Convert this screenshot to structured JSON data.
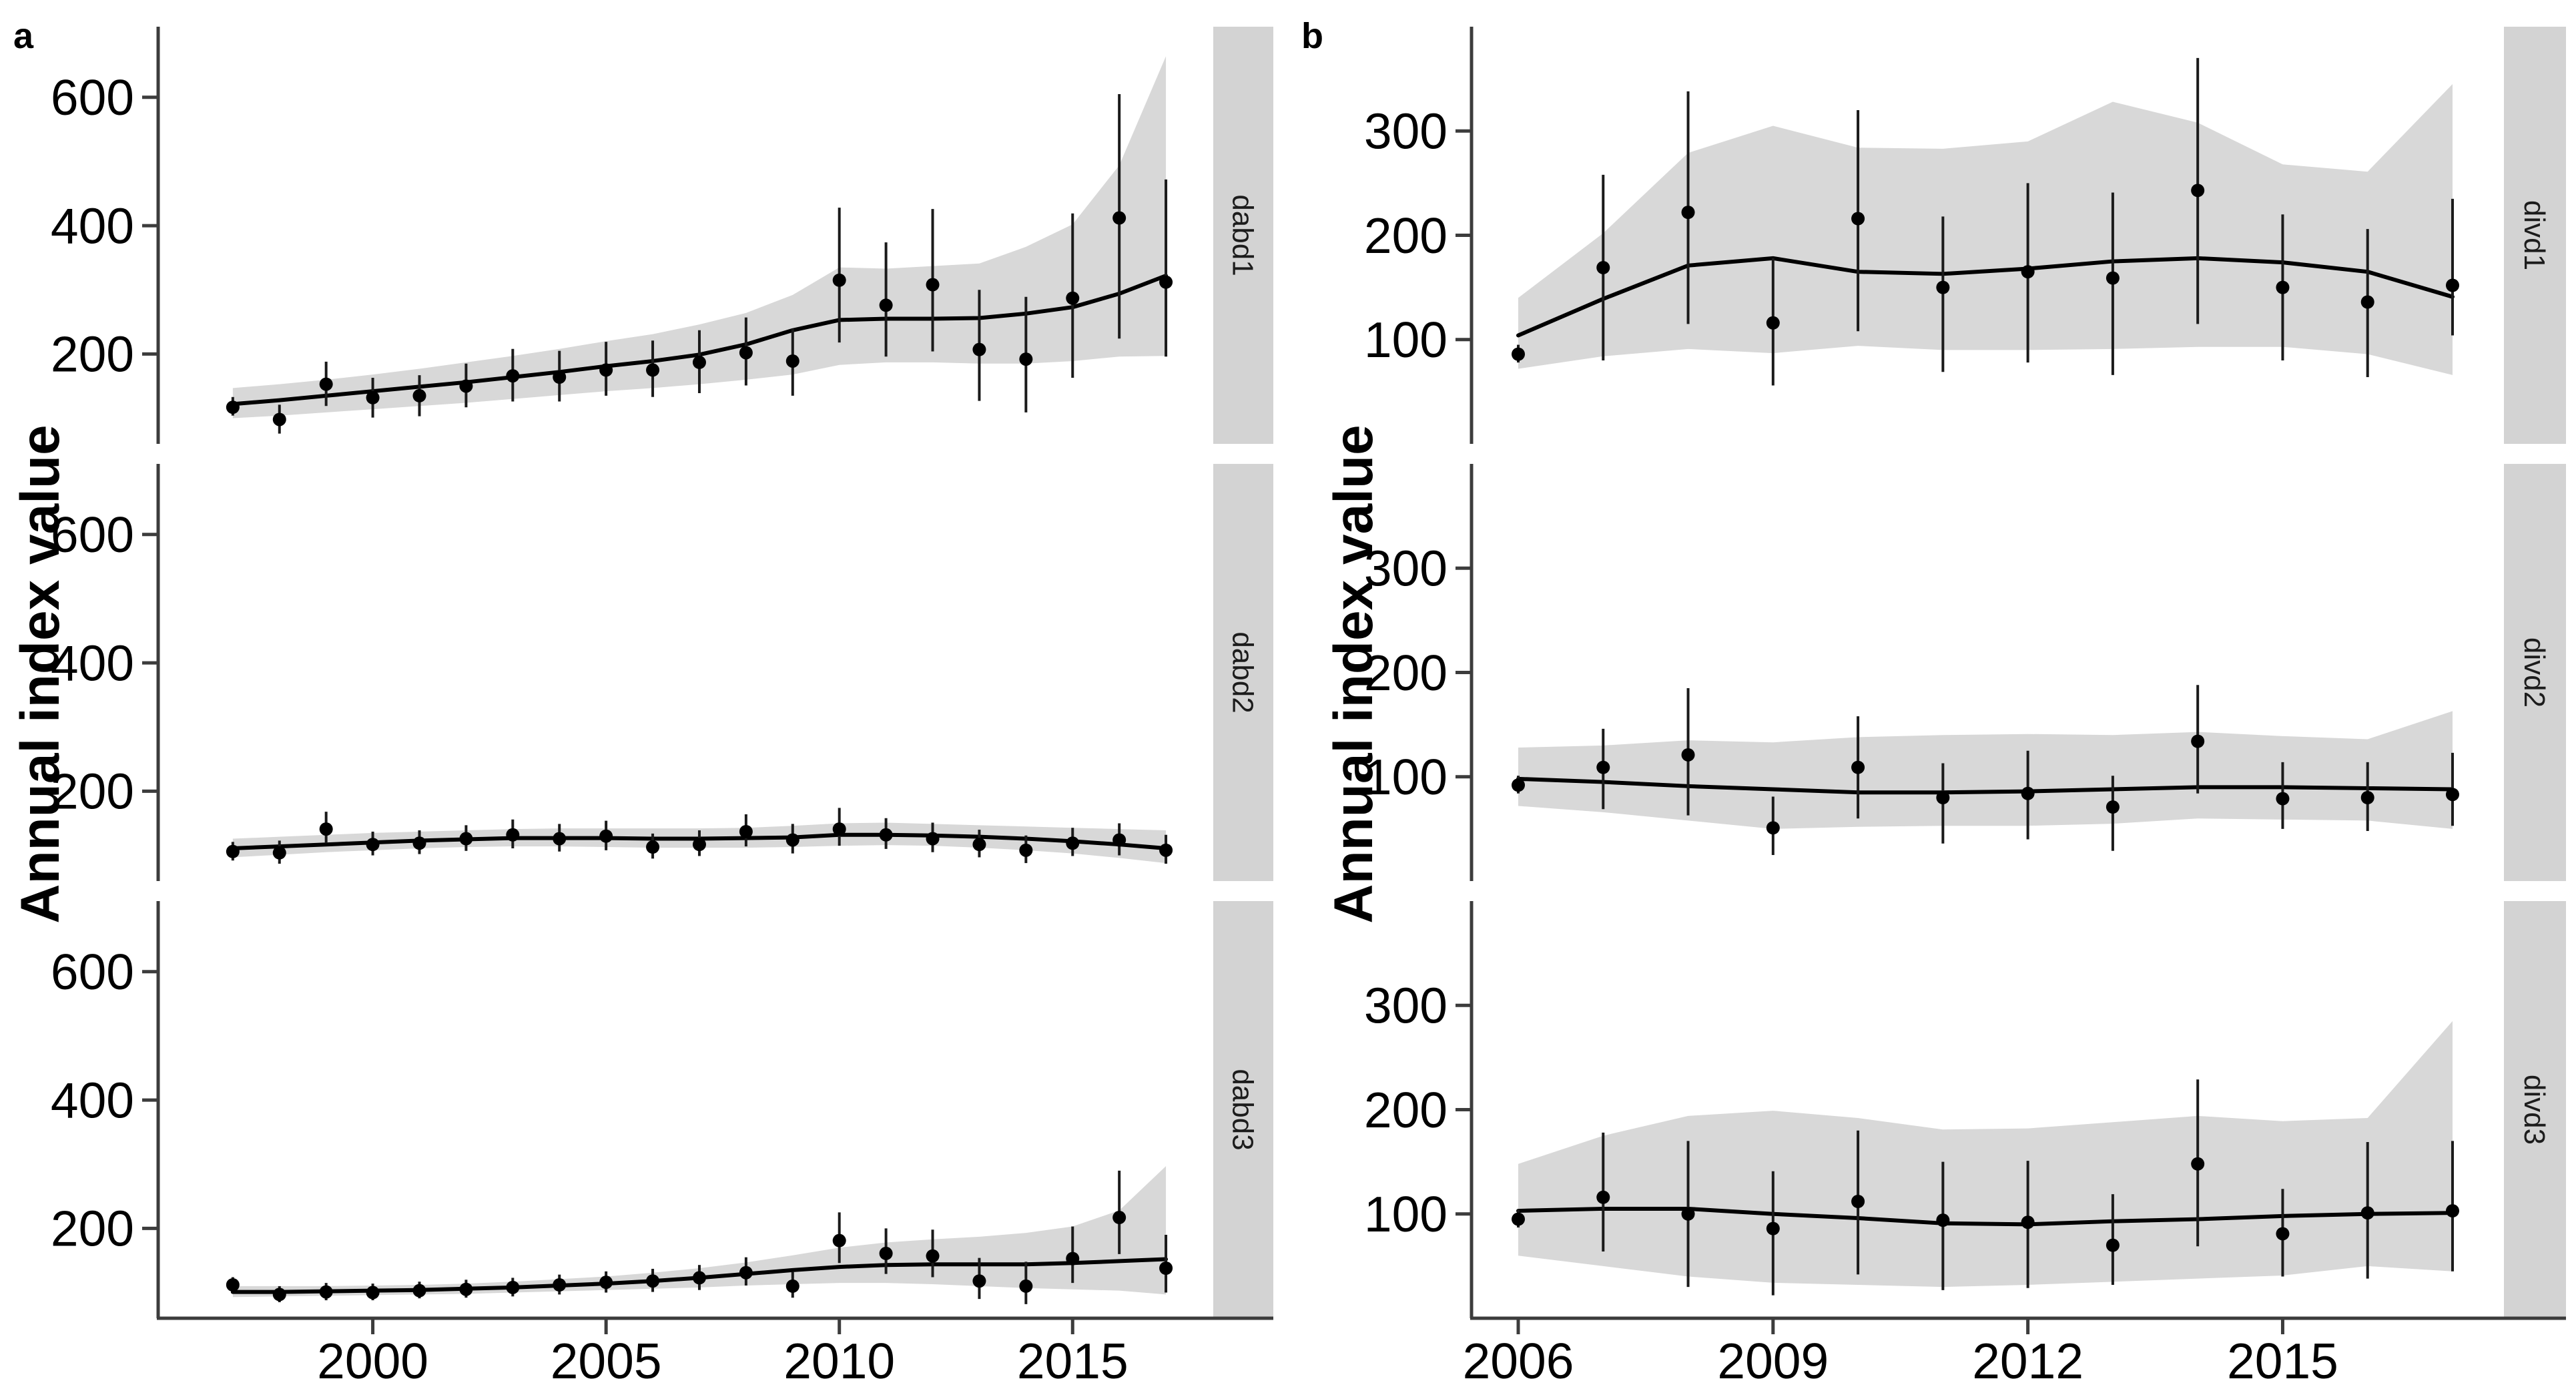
{
  "figure": {
    "background": "#ffffff",
    "colors": {
      "point": "#000000",
      "trend_line": "#000000",
      "error_bar": "#1a1a1a",
      "ribbon": "#d8d8d8",
      "strip_bg": "#d3d3d3",
      "axis": "#3c3c3c",
      "text": "#000000"
    }
  },
  "chart_data": [
    {
      "panel_label": "a",
      "type": "line",
      "title": "",
      "xlabel": "",
      "ylabel": "Annual index value",
      "grid": "off",
      "legend": "none",
      "x": [
        1997,
        1998,
        1999,
        2000,
        2001,
        2002,
        2003,
        2004,
        2005,
        2006,
        2007,
        2008,
        2009,
        2010,
        2011,
        2012,
        2013,
        2014,
        2015,
        2016,
        2017
      ],
      "x_ticks": [
        2000,
        2005,
        2010,
        2015
      ],
      "y_ticks": [
        200,
        400,
        600
      ],
      "xlim": [
        1995.4,
        2017.9
      ],
      "ylim": [
        60,
        710
      ],
      "facets": [
        {
          "label": "dabd1",
          "points": [
            117,
            98,
            153,
            132,
            135,
            150,
            166,
            164,
            175,
            175,
            187,
            202,
            189,
            315,
            276,
            308,
            207,
            192,
            287,
            412,
            312
          ],
          "ci_lo": [
            104,
            76,
            119,
            101,
            103,
            117,
            126,
            126,
            135,
            133,
            139,
            151,
            135,
            218,
            196,
            204,
            127,
            109,
            163,
            224,
            196
          ],
          "ci_hi": [
            133,
            121,
            188,
            163,
            167,
            185,
            208,
            205,
            219,
            221,
            237,
            257,
            239,
            428,
            374,
            426,
            300,
            289,
            419,
            605,
            472
          ],
          "trend": [
            122,
            128,
            135,
            142,
            149,
            156,
            164,
            172,
            181,
            189,
            199,
            215,
            237,
            253,
            255,
            255,
            256,
            263,
            273,
            294,
            322
          ],
          "band_lo": [
            100,
            104,
            109,
            114,
            119,
            124,
            130,
            136,
            142,
            147,
            153,
            160,
            168,
            183,
            187,
            187,
            185,
            185,
            189,
            196,
            197
          ],
          "band_hi": [
            147,
            153,
            160,
            168,
            177,
            187,
            197,
            208,
            220,
            231,
            246,
            264,
            292,
            335,
            333,
            337,
            341,
            367,
            402,
            494,
            664
          ]
        },
        {
          "label": "dabd2",
          "points": [
            106,
            104,
            141,
            117,
            119,
            126,
            132,
            126,
            130,
            113,
            117,
            137,
            124,
            141,
            132,
            126,
            117,
            108,
            119,
            124,
            108
          ],
          "ci_lo": [
            92,
            87,
            119,
            100,
            102,
            107,
            111,
            106,
            108,
            95,
            99,
            114,
            103,
            115,
            110,
            105,
            97,
            88,
            99,
            100,
            87
          ],
          "ci_hi": [
            121,
            123,
            168,
            137,
            139,
            147,
            156,
            149,
            154,
            134,
            139,
            164,
            149,
            174,
            158,
            151,
            140,
            131,
            143,
            150,
            132
          ],
          "trend": [
            111,
            114,
            117,
            120,
            123,
            125,
            127,
            127,
            127,
            126,
            126,
            127,
            128,
            132,
            132,
            131,
            129,
            126,
            122,
            117,
            111
          ],
          "band_lo": [
            97,
            101,
            105,
            108,
            111,
            113,
            114,
            114,
            113,
            112,
            112,
            112,
            113,
            115,
            116,
            115,
            112,
            108,
            103,
            96,
            88
          ],
          "band_hi": [
            126,
            129,
            132,
            135,
            137,
            139,
            141,
            142,
            142,
            142,
            142,
            143,
            146,
            150,
            151,
            149,
            147,
            145,
            143,
            141,
            139
          ]
        },
        {
          "label": "dabd3",
          "points": [
            112,
            97,
            101,
            100,
            103,
            105,
            108,
            112,
            116,
            118,
            123,
            131,
            110,
            181,
            161,
            157,
            118,
            110,
            153,
            217,
            138
          ],
          "ci_lo": [
            102,
            85,
            88,
            88,
            91,
            92,
            94,
            97,
            100,
            101,
            104,
            111,
            92,
            146,
            129,
            124,
            90,
            82,
            115,
            160,
            100
          ],
          "ci_hi": [
            124,
            110,
            115,
            114,
            117,
            120,
            123,
            128,
            133,
            137,
            143,
            155,
            132,
            225,
            200,
            198,
            154,
            148,
            203,
            290,
            190
          ],
          "trend": [
            101,
            101,
            102,
            103,
            104,
            106,
            108,
            111,
            114,
            118,
            123,
            129,
            135,
            140,
            143,
            144,
            144,
            144,
            146,
            149,
            152
          ],
          "band_lo": [
            93,
            94,
            95,
            96,
            97,
            98,
            100,
            102,
            104,
            106,
            108,
            111,
            113,
            115,
            115,
            113,
            110,
            107,
            105,
            103,
            97
          ],
          "band_hi": [
            110,
            110,
            110,
            111,
            112,
            114,
            117,
            121,
            125,
            131,
            138,
            147,
            158,
            170,
            178,
            183,
            187,
            193,
            203,
            228,
            297
          ]
        }
      ]
    },
    {
      "panel_label": "b",
      "type": "line",
      "title": "",
      "xlabel": "",
      "ylabel": "Annual index value",
      "grid": "off",
      "legend": "none",
      "x": [
        2006,
        2007,
        2008,
        2009,
        2010,
        2011,
        2012,
        2013,
        2014,
        2015,
        2016,
        2017
      ],
      "x_ticks": [
        2006,
        2009,
        2012,
        2015
      ],
      "y_ticks": [
        100,
        200,
        300
      ],
      "xlim": [
        2005.45,
        2017.55
      ],
      "ylim": [
        0,
        400
      ],
      "facets": [
        {
          "label": "divd1",
          "points": [
            86,
            169,
            222,
            116,
            216,
            150,
            165,
            159,
            243,
            150,
            136,
            152
          ],
          "ci_lo": [
            78,
            80,
            115,
            56,
            108,
            69,
            78,
            66,
            115,
            80,
            64,
            104
          ],
          "ci_hi": [
            95,
            258,
            338,
            178,
            320,
            218,
            250,
            241,
            370,
            220,
            206,
            235
          ],
          "trend": [
            104,
            139,
            171,
            178,
            165,
            163,
            168,
            175,
            178,
            174,
            165,
            141
          ],
          "band_lo": [
            72,
            84,
            91,
            87,
            94,
            90,
            90,
            91,
            93,
            93,
            86,
            66
          ],
          "band_hi": [
            140,
            202,
            279,
            305,
            284,
            283,
            290,
            328,
            308,
            268,
            261,
            345
          ]
        },
        {
          "label": "divd2",
          "points": [
            92,
            109,
            121,
            51,
            109,
            80,
            84,
            71,
            134,
            79,
            80,
            83
          ],
          "ci_lo": [
            84,
            69,
            63,
            25,
            60,
            36,
            40,
            29,
            84,
            50,
            48,
            53
          ],
          "ci_hi": [
            101,
            146,
            185,
            81,
            158,
            113,
            125,
            101,
            188,
            114,
            114,
            123
          ],
          "trend": [
            98,
            95,
            91,
            88,
            85,
            85,
            86,
            88,
            90,
            90,
            89,
            88
          ],
          "band_lo": [
            72,
            66,
            58,
            50,
            52,
            53,
            53,
            55,
            60,
            59,
            58,
            50
          ],
          "band_hi": [
            128,
            130,
            135,
            133,
            138,
            140,
            141,
            140,
            143,
            139,
            136,
            163
          ]
        },
        {
          "label": "divd3",
          "points": [
            95,
            116,
            100,
            86,
            112,
            94,
            92,
            70,
            148,
            81,
            101,
            103
          ],
          "ci_lo": [
            87,
            64,
            30,
            22,
            42,
            27,
            29,
            32,
            69,
            40,
            38,
            45
          ],
          "ci_hi": [
            104,
            178,
            170,
            141,
            180,
            150,
            151,
            119,
            229,
            124,
            169,
            170
          ],
          "trend": [
            103,
            105,
            105,
            100,
            96,
            91,
            90,
            93,
            95,
            98,
            100,
            101
          ],
          "band_lo": [
            60,
            50,
            40,
            34,
            32,
            30,
            32,
            35,
            38,
            41,
            50,
            45
          ],
          "band_hi": [
            148,
            175,
            194,
            199,
            192,
            181,
            182,
            188,
            194,
            189,
            192,
            285
          ]
        }
      ]
    }
  ]
}
